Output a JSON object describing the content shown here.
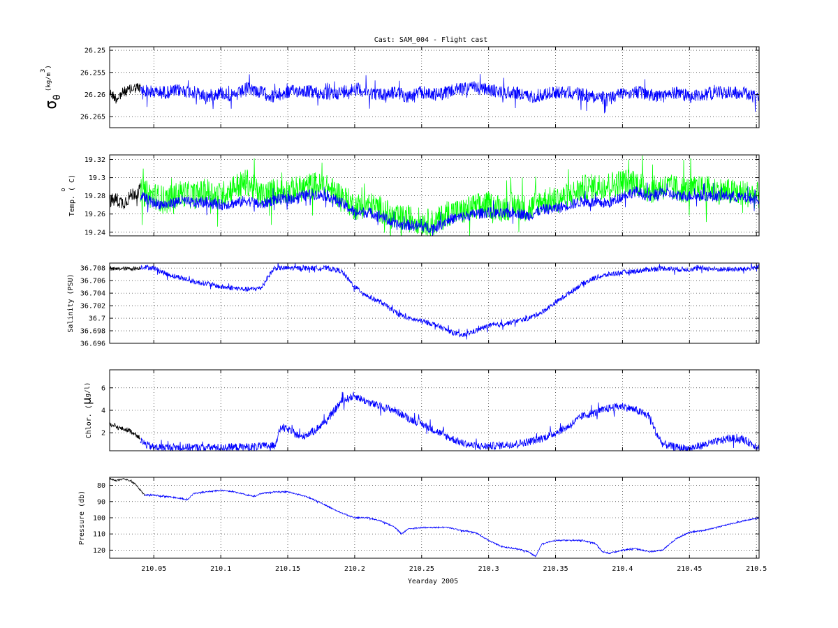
{
  "figure": {
    "title": "Cast: SAM_004 - Flight cast",
    "xlabel": "Yearday 2005"
  },
  "colors": {
    "primary_trace": "#0000ff",
    "early_trace": "#000000",
    "secondary_temp_trace": "#00ff00",
    "grid": "#000000",
    "background": "#ffffff"
  },
  "chart_data": [
    {
      "type": "line",
      "name": "sigma-theta",
      "ylabel_symbol": "σ",
      "ylabel_subscript": "θ",
      "ylabel_units": "(kg/m",
      "ylabel_units_sup": "3",
      "ylabel_units_close": ")",
      "xlim": [
        210.017,
        210.502
      ],
      "ylim": [
        26.2675,
        26.2492
      ],
      "y_reversed": true,
      "yticks": [
        26.25,
        26.255,
        26.26,
        26.265
      ],
      "ytick_labels": [
        "26.25",
        "26.255",
        "26.26",
        "26.265"
      ],
      "grid": true,
      "series": [
        {
          "color": "#000000",
          "x": [
            210.017,
            210.022,
            210.027,
            210.032,
            210.036,
            210.04
          ],
          "y": [
            26.2595,
            26.261,
            26.2595,
            26.259,
            26.2585,
            26.2585
          ],
          "noise": 0.0012
        },
        {
          "color": "#0000ff",
          "x": [
            210.04,
            210.05,
            210.06,
            210.07,
            210.08,
            210.09,
            210.1,
            210.11,
            210.12,
            210.13,
            210.14,
            210.15,
            210.16,
            210.17,
            210.18,
            210.19,
            210.2,
            210.21,
            210.22,
            210.23,
            210.24,
            210.25,
            210.26,
            210.27,
            210.28,
            210.29,
            210.3,
            210.31,
            210.32,
            210.33,
            210.34,
            210.35,
            210.36,
            210.37,
            210.38,
            210.39,
            210.4,
            210.41,
            210.42,
            210.43,
            210.44,
            210.45,
            210.46,
            210.47,
            210.48,
            210.49,
            210.502
          ],
          "y": [
            26.259,
            26.2595,
            26.2595,
            26.259,
            26.2595,
            26.2605,
            26.2595,
            26.2605,
            26.2585,
            26.2595,
            26.2605,
            26.2595,
            26.259,
            26.2595,
            26.26,
            26.2595,
            26.2585,
            26.2595,
            26.26,
            26.2595,
            26.2605,
            26.2595,
            26.26,
            26.2595,
            26.2585,
            26.2585,
            26.259,
            26.2595,
            26.2595,
            26.2605,
            26.26,
            26.2595,
            26.2595,
            26.26,
            26.2605,
            26.261,
            26.2595,
            26.2595,
            26.26,
            26.2605,
            26.2595,
            26.2605,
            26.26,
            26.2595,
            26.2595,
            26.2595,
            26.261
          ],
          "noise": 0.0015
        }
      ]
    },
    {
      "type": "line",
      "name": "temperature",
      "ylabel": "Temp. ( C)",
      "ylabel_sup": "o",
      "xlim": [
        210.017,
        210.502
      ],
      "ylim": [
        19.236,
        19.325
      ],
      "yticks": [
        19.24,
        19.26,
        19.28,
        19.3,
        19.32
      ],
      "ytick_labels": [
        "19.24",
        "19.26",
        "19.28",
        "19.3",
        "19.32"
      ],
      "grid": true,
      "series": [
        {
          "color": "#000000",
          "x": [
            210.017,
            210.022,
            210.027,
            210.032,
            210.036,
            210.04
          ],
          "y": [
            19.274,
            19.276,
            19.272,
            19.279,
            19.284,
            19.286
          ],
          "noise": 0.008
        },
        {
          "color": "#00ff00",
          "x": [
            210.04,
            210.05,
            210.06,
            210.07,
            210.08,
            210.09,
            210.1,
            210.11,
            210.12,
            210.13,
            210.14,
            210.15,
            210.16,
            210.17,
            210.18,
            210.19,
            210.2,
            210.21,
            210.22,
            210.23,
            210.24,
            210.25,
            210.26,
            210.27,
            210.28,
            210.29,
            210.3,
            210.31,
            210.32,
            210.33,
            210.34,
            210.35,
            210.36,
            210.37,
            210.38,
            210.39,
            210.4,
            210.41,
            210.42,
            210.43,
            210.44,
            210.45,
            210.46,
            210.47,
            210.48,
            210.49,
            210.502
          ],
          "y": [
            19.284,
            19.28,
            19.275,
            19.283,
            19.28,
            19.285,
            19.28,
            19.29,
            19.295,
            19.28,
            19.285,
            19.285,
            19.288,
            19.292,
            19.288,
            19.28,
            19.268,
            19.27,
            19.265,
            19.255,
            19.255,
            19.252,
            19.25,
            19.262,
            19.262,
            19.268,
            19.27,
            19.266,
            19.27,
            19.265,
            19.275,
            19.275,
            19.28,
            19.288,
            19.29,
            19.292,
            19.295,
            19.295,
            19.286,
            19.29,
            19.288,
            19.286,
            19.288,
            19.286,
            19.284,
            19.283,
            19.28
          ],
          "noise": 0.015
        },
        {
          "color": "#0000ff",
          "x": [
            210.04,
            210.05,
            210.06,
            210.07,
            210.08,
            210.09,
            210.1,
            210.11,
            210.12,
            210.13,
            210.14,
            210.15,
            210.16,
            210.17,
            210.18,
            210.19,
            210.2,
            210.21,
            210.22,
            210.23,
            210.24,
            210.25,
            210.26,
            210.27,
            210.28,
            210.29,
            210.3,
            210.31,
            210.32,
            210.33,
            210.34,
            210.35,
            210.36,
            210.37,
            210.38,
            210.39,
            210.4,
            210.41,
            210.42,
            210.43,
            210.44,
            210.45,
            210.46,
            210.47,
            210.48,
            210.49,
            210.502
          ],
          "y": [
            19.28,
            19.272,
            19.27,
            19.275,
            19.272,
            19.273,
            19.27,
            19.272,
            19.275,
            19.27,
            19.276,
            19.276,
            19.28,
            19.282,
            19.28,
            19.272,
            19.262,
            19.262,
            19.258,
            19.248,
            19.248,
            19.246,
            19.245,
            19.254,
            19.257,
            19.26,
            19.262,
            19.26,
            19.262,
            19.258,
            19.265,
            19.266,
            19.27,
            19.274,
            19.272,
            19.272,
            19.28,
            19.285,
            19.279,
            19.284,
            19.28,
            19.28,
            19.28,
            19.28,
            19.28,
            19.278,
            19.276
          ],
          "noise": 0.006
        }
      ]
    },
    {
      "type": "line",
      "name": "salinity",
      "ylabel": "Salinity (PSU)",
      "xlim": [
        210.017,
        210.502
      ],
      "ylim": [
        36.696,
        36.7088
      ],
      "yticks": [
        36.696,
        36.698,
        36.7,
        36.702,
        36.704,
        36.706,
        36.708
      ],
      "ytick_labels": [
        "36.696",
        "36.698",
        "36.7",
        "36.702",
        "36.704",
        "36.706",
        "36.708"
      ],
      "grid": true,
      "series": [
        {
          "color": "#000000",
          "x": [
            210.017,
            210.025,
            210.032,
            210.04
          ],
          "y": [
            36.7078,
            36.7079,
            36.7079,
            36.708
          ],
          "noise": 0.0003
        },
        {
          "color": "#0000ff",
          "x": [
            210.04,
            210.05,
            210.06,
            210.07,
            210.08,
            210.09,
            210.1,
            210.11,
            210.12,
            210.13,
            210.135,
            210.14,
            210.15,
            210.16,
            210.17,
            210.18,
            210.19,
            210.2,
            210.21,
            210.22,
            210.23,
            210.24,
            210.25,
            210.26,
            210.27,
            210.28,
            210.29,
            210.3,
            210.31,
            210.32,
            210.33,
            210.34,
            210.35,
            210.36,
            210.37,
            210.38,
            210.39,
            210.4,
            210.41,
            210.42,
            210.43,
            210.44,
            210.45,
            210.46,
            210.47,
            210.48,
            210.49,
            210.502
          ],
          "y": [
            36.7082,
            36.708,
            36.707,
            36.7065,
            36.7058,
            36.7055,
            36.705,
            36.7048,
            36.7046,
            36.7048,
            36.7065,
            36.708,
            36.708,
            36.708,
            36.708,
            36.708,
            36.7075,
            36.705,
            36.7035,
            36.7025,
            36.701,
            36.7,
            36.6995,
            36.699,
            36.698,
            36.6972,
            36.698,
            36.6988,
            36.699,
            36.6995,
            36.7,
            36.701,
            36.7025,
            36.704,
            36.7055,
            36.7065,
            36.707,
            36.7073,
            36.7075,
            36.7078,
            36.708,
            36.7078,
            36.7078,
            36.708,
            36.7078,
            36.7078,
            36.7078,
            36.7082
          ],
          "noise": 0.0004
        }
      ]
    },
    {
      "type": "line",
      "name": "chlorophyll",
      "ylabel": "Chlor. (",
      "ylabel_mu": "μ",
      "ylabel_units": "g/l)",
      "xlim": [
        210.017,
        210.502
      ],
      "ylim": [
        0.4,
        7.6
      ],
      "yticks": [
        2,
        4,
        6
      ],
      "ytick_labels": [
        "2",
        "4",
        "6"
      ],
      "grid": true,
      "series": [
        {
          "color": "#000000",
          "x": [
            210.017,
            210.025,
            210.032,
            210.037,
            210.04
          ],
          "y": [
            2.7,
            2.4,
            2.2,
            1.8,
            1.5
          ],
          "noise": 0.2
        },
        {
          "color": "#0000ff",
          "x": [
            210.04,
            210.045,
            210.05,
            210.06,
            210.08,
            210.1,
            210.12,
            210.13,
            210.14,
            210.145,
            210.15,
            210.16,
            210.17,
            210.18,
            210.19,
            210.2,
            210.21,
            210.22,
            210.23,
            210.24,
            210.25,
            210.26,
            210.27,
            210.28,
            210.29,
            210.3,
            210.31,
            210.32,
            210.33,
            210.34,
            210.35,
            210.36,
            210.37,
            210.38,
            210.39,
            210.4,
            210.41,
            210.42,
            210.425,
            210.43,
            210.44,
            210.45,
            210.46,
            210.47,
            210.48,
            210.49,
            210.502
          ],
          "y": [
            1.3,
            0.9,
            0.7,
            0.7,
            0.7,
            0.7,
            0.75,
            0.8,
            0.85,
            2.5,
            2.3,
            1.6,
            2.2,
            3.2,
            4.8,
            5.3,
            4.7,
            4.3,
            4.0,
            3.3,
            2.8,
            2.2,
            1.6,
            1.1,
            0.8,
            0.8,
            0.9,
            1.0,
            1.2,
            1.5,
            2.0,
            2.6,
            3.5,
            3.8,
            4.2,
            4.4,
            4.0,
            3.5,
            2.0,
            1.0,
            0.7,
            0.6,
            0.9,
            1.2,
            1.5,
            1.4,
            0.7
          ],
          "noise": 0.35
        }
      ]
    },
    {
      "type": "line",
      "name": "pressure",
      "ylabel": "Pressure (db)",
      "xlim": [
        210.017,
        210.502
      ],
      "ylim": [
        125,
        75
      ],
      "y_reversed": true,
      "yticks": [
        80,
        90,
        100,
        110,
        120
      ],
      "ytick_labels": [
        "80",
        "90",
        "100",
        "110",
        "120"
      ],
      "xticks": [
        210.05,
        210.1,
        210.15,
        210.2,
        210.25,
        210.3,
        210.35,
        210.4,
        210.45,
        210.5
      ],
      "xtick_labels": [
        "210.05",
        "210.1",
        "210.15",
        "210.2",
        "210.25",
        "210.3",
        "210.35",
        "210.4",
        "210.45",
        "210.5"
      ],
      "grid": true,
      "series": [
        {
          "color": "#000000",
          "x": [
            210.017,
            210.022,
            210.027,
            210.032,
            210.036,
            210.04,
            210.043
          ],
          "y": [
            76,
            77,
            76,
            77,
            79,
            83,
            86
          ],
          "noise": 0.5
        },
        {
          "color": "#0000ff",
          "x": [
            210.043,
            210.05,
            210.06,
            210.07,
            210.075,
            210.08,
            210.09,
            210.1,
            210.11,
            210.12,
            210.125,
            210.13,
            210.14,
            210.15,
            210.16,
            210.17,
            210.18,
            210.19,
            210.2,
            210.21,
            210.22,
            210.23,
            210.235,
            210.24,
            210.25,
            210.26,
            210.27,
            210.28,
            210.29,
            210.3,
            210.31,
            210.32,
            210.33,
            210.335,
            210.34,
            210.35,
            210.36,
            210.37,
            210.38,
            210.385,
            210.39,
            210.4,
            210.41,
            210.42,
            210.43,
            210.44,
            210.45,
            210.46,
            210.47,
            210.48,
            210.49,
            210.502
          ],
          "y": [
            86,
            86,
            87,
            88,
            89,
            85,
            84,
            83,
            84,
            86,
            87,
            85,
            84,
            84,
            86,
            89,
            93,
            97,
            100,
            100,
            102,
            106,
            110,
            107,
            106,
            106,
            106,
            108,
            109,
            114,
            118,
            119,
            121,
            124,
            116,
            114,
            114,
            114,
            116,
            121,
            122,
            120,
            119,
            121,
            120,
            113,
            109,
            108,
            106,
            104,
            102,
            100
          ],
          "noise": 0.4
        }
      ]
    }
  ]
}
